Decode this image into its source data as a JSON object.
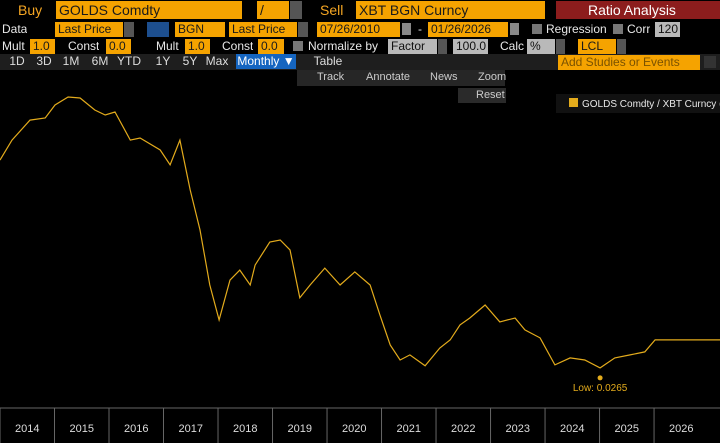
{
  "ui": {
    "buy_label": "Buy",
    "buy_security": "GOLDS Comdty",
    "operator": "/",
    "sell_label": "Sell",
    "sell_security": "XBT BGN Curncy",
    "title": "Ratio Analysis",
    "data_label": "Data",
    "field_1": "Last Price",
    "source": "BGN",
    "field_2": "Last Price",
    "start_date": "07/26/2010",
    "date_sep": "-",
    "end_date": "01/26/2026",
    "regression": "Regression",
    "corr": "Corr",
    "corr_window": "120",
    "mult_1_label": "Mult",
    "mult_1": "1.0",
    "const_1_label": "Const",
    "const_1": "0.0",
    "mult_2_label": "Mult",
    "mult_2": "1.0",
    "const_2_label": "Const",
    "const_2": "0.0",
    "normalize_label": "Normalize by",
    "normalize": "Factor",
    "factor": "100.0",
    "calc_label": "Calc",
    "calc": "%",
    "currency": "LCL",
    "periods": [
      "1D",
      "3D",
      "1M",
      "6M",
      "YTD",
      "1Y",
      "5Y",
      "Max"
    ],
    "frequency": "Monthly ▼",
    "table": "Table",
    "studies": "Add Studies or Events",
    "tools": [
      "Track",
      "Annotate",
      "News",
      "Zoom"
    ],
    "reset": "Reset"
  },
  "chart_data": {
    "type": "line",
    "log_scale": true,
    "annotation": "Low: 0.0265",
    "x": [
      2014.0,
      2014.22,
      2014.55,
      2014.83,
      2015.01,
      2015.25,
      2015.47,
      2015.74,
      2015.93,
      2016.11,
      2016.39,
      2016.57,
      2016.94,
      2017.12,
      2017.3,
      2017.49,
      2017.67,
      2017.85,
      2018.02,
      2018.22,
      2018.4,
      2018.59,
      2018.68,
      2018.95,
      2019.14,
      2019.32,
      2019.5,
      2019.69,
      2019.96,
      2020.24,
      2020.51,
      2020.79,
      2020.97,
      2021.16,
      2021.34,
      2021.52,
      2021.8,
      2022.07,
      2022.26,
      2022.44,
      2022.62,
      2022.9,
      2023.17,
      2023.45,
      2023.63,
      2023.91,
      2024.18,
      2024.46,
      2024.73,
      2025.01,
      2025.28,
      2025.56,
      2025.83,
      2026.02,
      2027.21
    ],
    "series": [
      {
        "name": "GOLDS Comdty / XBT Curncy (",
        "color": "#e3ab1c",
        "values": [
          1.48,
          2.18,
          3.21,
          3.34,
          4.3,
          5.02,
          4.92,
          3.9,
          3.54,
          3.75,
          2.18,
          2.27,
          1.8,
          1.35,
          2.18,
          0.83,
          0.383,
          0.132,
          0.0671,
          0.145,
          0.176,
          0.132,
          0.194,
          0.303,
          0.315,
          0.26,
          0.103,
          0.132,
          0.183,
          0.132,
          0.17,
          0.132,
          0.0739,
          0.0413,
          0.0309,
          0.0341,
          0.0276,
          0.039,
          0.0456,
          0.0609,
          0.0697,
          0.0896,
          0.0646,
          0.0697,
          0.0553,
          0.0474,
          0.0281,
          0.0322,
          0.0309,
          0.0265,
          0.0322,
          0.0341,
          0.0361,
          0.0456,
          0.0456
        ]
      }
    ],
    "xlim": [
      2014,
      2027.21
    ],
    "ylim": [
      0.0122,
      5.97
    ],
    "xticks": [
      2014,
      2015,
      2016,
      2017,
      2018,
      2019,
      2020,
      2021,
      2022,
      2023,
      2024,
      2025,
      2026
    ]
  }
}
